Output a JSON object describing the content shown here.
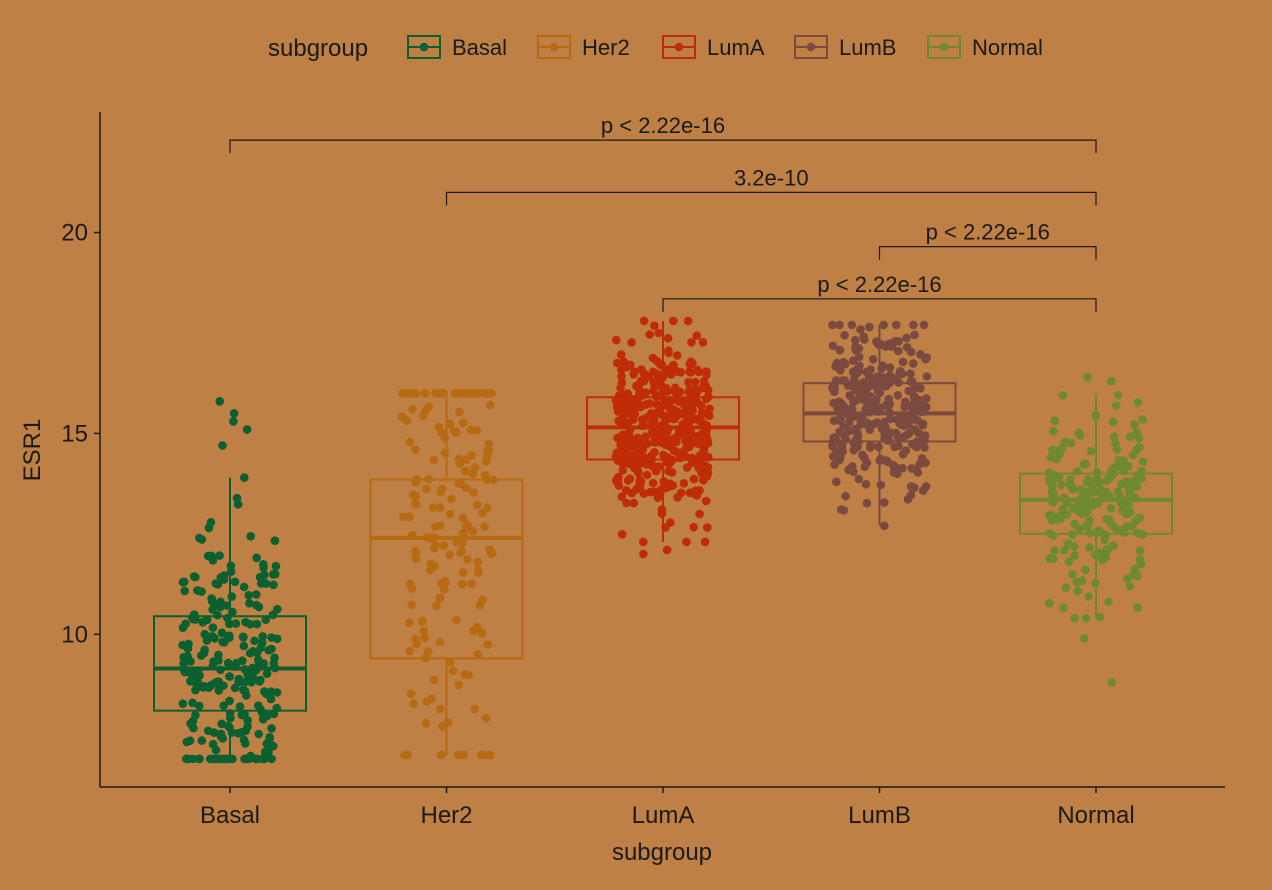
{
  "chart_data": {
    "type": "boxplot",
    "xlabel": "subgroup",
    "ylabel": "ESR1",
    "ylim": [
      6.2,
      23
    ],
    "yticks": [
      10,
      15,
      20
    ],
    "grid": false,
    "legend": {
      "title": "subgroup",
      "placement": "top",
      "entries": [
        "Basal",
        "Her2",
        "LumA",
        "LumB",
        "Normal"
      ]
    },
    "categories": [
      "Basal",
      "Her2",
      "LumA",
      "LumB",
      "Normal"
    ],
    "colors": {
      "Basal": "#0B6030",
      "Her2": "#B76A12",
      "LumA": "#C02C08",
      "LumB": "#7A4A40",
      "Normal": "#6E8A2E"
    },
    "boxes": [
      {
        "group": "Basal",
        "min": 6.9,
        "q1": 8.1,
        "median": 9.15,
        "q3": 10.45,
        "max": 13.9,
        "outliers": [
          14.7,
          15.1,
          15.3,
          15.5,
          15.8
        ],
        "n": 250,
        "point_range": [
          6.9,
          13.9
        ]
      },
      {
        "group": "Her2",
        "min": 7.0,
        "q1": 9.4,
        "median": 12.4,
        "q3": 13.85,
        "max": 16.0,
        "outliers": [],
        "n": 180,
        "point_range": [
          7.0,
          16.0
        ]
      },
      {
        "group": "LumA",
        "min": 12.3,
        "q1": 14.35,
        "median": 15.15,
        "q3": 15.9,
        "max": 17.8,
        "outliers": [
          12.0,
          12.1
        ],
        "n": 420,
        "point_range": [
          12.3,
          17.8
        ]
      },
      {
        "group": "LumB",
        "min": 12.7,
        "q1": 14.8,
        "median": 15.5,
        "q3": 16.25,
        "max": 17.7,
        "outliers": [],
        "n": 300,
        "point_range": [
          12.7,
          17.7
        ]
      },
      {
        "group": "Normal",
        "min": 10.4,
        "q1": 12.5,
        "median": 13.35,
        "q3": 14.0,
        "max": 16.0,
        "outliers": [
          9.9,
          8.8,
          16.3,
          16.4
        ],
        "n": 200,
        "point_range": [
          10.4,
          16.0
        ]
      }
    ],
    "comparisons": [
      {
        "from": "Basal",
        "to": "Normal",
        "label": "p < 2.22e-16",
        "y": 22.3
      },
      {
        "from": "Her2",
        "to": "Normal",
        "label": "3.2e-10",
        "y": 21.0
      },
      {
        "from": "LumB",
        "to": "Normal",
        "label": "p < 2.22e-16",
        "y": 19.65
      },
      {
        "from": "LumA",
        "to": "Normal",
        "label": "p < 2.22e-16",
        "y": 18.35
      }
    ]
  }
}
